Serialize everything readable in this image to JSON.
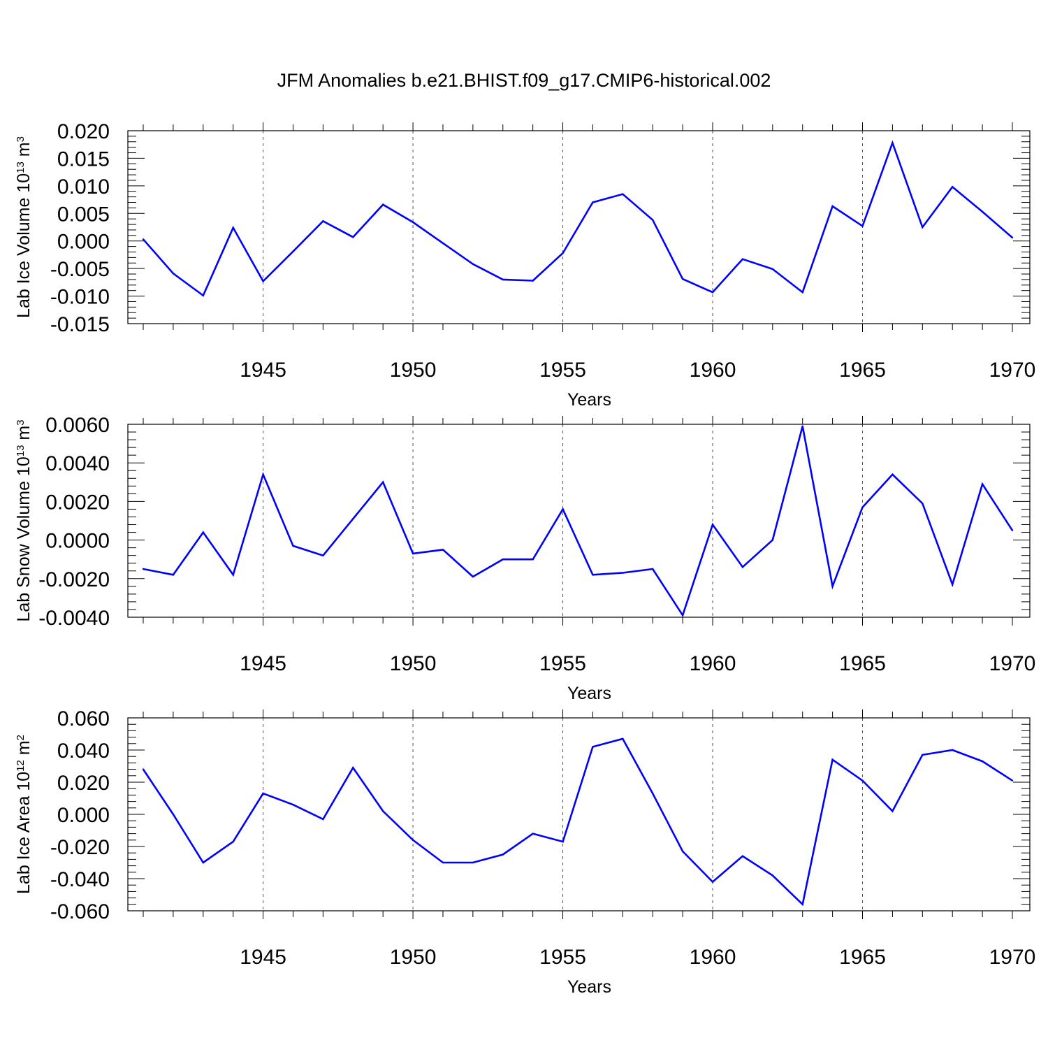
{
  "title": "JFM Anomalies b.e21.BHIST.f09_g17.CMIP6-historical.002",
  "line_color": "#0000ff",
  "chart_data": [
    {
      "type": "line",
      "ylabel_main": "Lab Ice Volume 10",
      "ylabel_exp": "13",
      "ylabel_unit": " m",
      "ylabel_unit_exp": "3",
      "xlabel": "Years",
      "xlim": [
        1941,
        1970
      ],
      "ylim": [
        -0.015,
        0.02
      ],
      "yticks": [
        "0.020",
        "0.015",
        "0.010",
        "0.005",
        "0.000",
        "-0.005",
        "-0.010",
        "-0.015"
      ],
      "ytick_values": [
        0.02,
        0.015,
        0.01,
        0.005,
        0.0,
        -0.005,
        -0.01,
        -0.015
      ],
      "xticks": [
        "1945",
        "1950",
        "1955",
        "1960",
        "1965",
        "1970"
      ],
      "xtick_values": [
        1945,
        1950,
        1955,
        1960,
        1965,
        1970
      ],
      "grid_x": true,
      "x": [
        1941,
        1942,
        1943,
        1944,
        1945,
        1946,
        1947,
        1948,
        1949,
        1950,
        1951,
        1952,
        1953,
        1954,
        1955,
        1956,
        1957,
        1958,
        1959,
        1960,
        1961,
        1962,
        1963,
        1964,
        1965,
        1966,
        1967,
        1968,
        1969,
        1970
      ],
      "values": [
        0.0003,
        -0.0059,
        -0.0099,
        0.0024,
        -0.0073,
        -0.0019,
        0.0036,
        0.0007,
        0.0066,
        0.0034,
        -0.0004,
        -0.0042,
        -0.007,
        -0.0072,
        -0.0022,
        0.007,
        0.0085,
        0.0038,
        -0.0069,
        -0.0093,
        -0.0033,
        -0.0051,
        -0.0093,
        0.0063,
        0.0027,
        0.0178,
        0.0025,
        0.0098,
        0.0053,
        0.0006
      ]
    },
    {
      "type": "line",
      "ylabel_main": "Lab Snow Volume 10",
      "ylabel_exp": "13",
      "ylabel_unit": " m",
      "ylabel_unit_exp": "3",
      "xlabel": "Years",
      "xlim": [
        1941,
        1970
      ],
      "ylim": [
        -0.004,
        0.006
      ],
      "yticks": [
        "0.0060",
        "0.0040",
        "0.0020",
        "0.0000",
        "-0.0020",
        "-0.0040"
      ],
      "ytick_values": [
        0.006,
        0.004,
        0.002,
        0.0,
        -0.002,
        -0.004
      ],
      "xticks": [
        "1945",
        "1950",
        "1955",
        "1960",
        "1965",
        "1970"
      ],
      "xtick_values": [
        1945,
        1950,
        1955,
        1960,
        1965,
        1970
      ],
      "grid_x": true,
      "x": [
        1941,
        1942,
        1943,
        1944,
        1945,
        1946,
        1947,
        1948,
        1949,
        1950,
        1951,
        1952,
        1953,
        1954,
        1955,
        1956,
        1957,
        1958,
        1959,
        1960,
        1961,
        1962,
        1963,
        1964,
        1965,
        1966,
        1967,
        1968,
        1969,
        1970
      ],
      "values": [
        -0.0015,
        -0.0018,
        0.0004,
        -0.0018,
        0.0034,
        -0.0003,
        -0.0008,
        0.0011,
        0.003,
        -0.0007,
        -0.0005,
        -0.0019,
        -0.001,
        -0.001,
        0.0016,
        -0.0018,
        -0.0017,
        -0.0015,
        -0.0039,
        0.0008,
        -0.0014,
        0.0,
        0.0059,
        -0.0024,
        0.0017,
        0.0034,
        0.0019,
        -0.0023,
        0.0029,
        0.0005
      ]
    },
    {
      "type": "line",
      "ylabel_main": "Lab Ice Area 10",
      "ylabel_exp": "12",
      "ylabel_unit": " m",
      "ylabel_unit_exp": "2",
      "xlabel": "Years",
      "xlim": [
        1941,
        1970
      ],
      "ylim": [
        -0.06,
        0.06
      ],
      "yticks": [
        "0.060",
        "0.040",
        "0.020",
        "0.000",
        "-0.020",
        "-0.040",
        "-0.060"
      ],
      "ytick_values": [
        0.06,
        0.04,
        0.02,
        0.0,
        -0.02,
        -0.04,
        -0.06
      ],
      "xticks": [
        "1945",
        "1950",
        "1955",
        "1960",
        "1965",
        "1970"
      ],
      "xtick_values": [
        1945,
        1950,
        1955,
        1960,
        1965,
        1970
      ],
      "grid_x": true,
      "x": [
        1941,
        1942,
        1943,
        1944,
        1945,
        1946,
        1947,
        1948,
        1949,
        1950,
        1951,
        1952,
        1953,
        1954,
        1955,
        1956,
        1957,
        1958,
        1959,
        1960,
        1961,
        1962,
        1963,
        1964,
        1965,
        1966,
        1967,
        1968,
        1969,
        1970
      ],
      "values": [
        0.028,
        0.0,
        -0.03,
        -0.017,
        0.013,
        0.006,
        -0.003,
        0.029,
        0.002,
        -0.016,
        -0.03,
        -0.03,
        -0.025,
        -0.012,
        -0.017,
        0.042,
        0.047,
        0.013,
        -0.023,
        -0.042,
        -0.026,
        -0.038,
        -0.056,
        0.034,
        0.021,
        0.002,
        0.037,
        0.04,
        0.033,
        0.021
      ]
    }
  ]
}
